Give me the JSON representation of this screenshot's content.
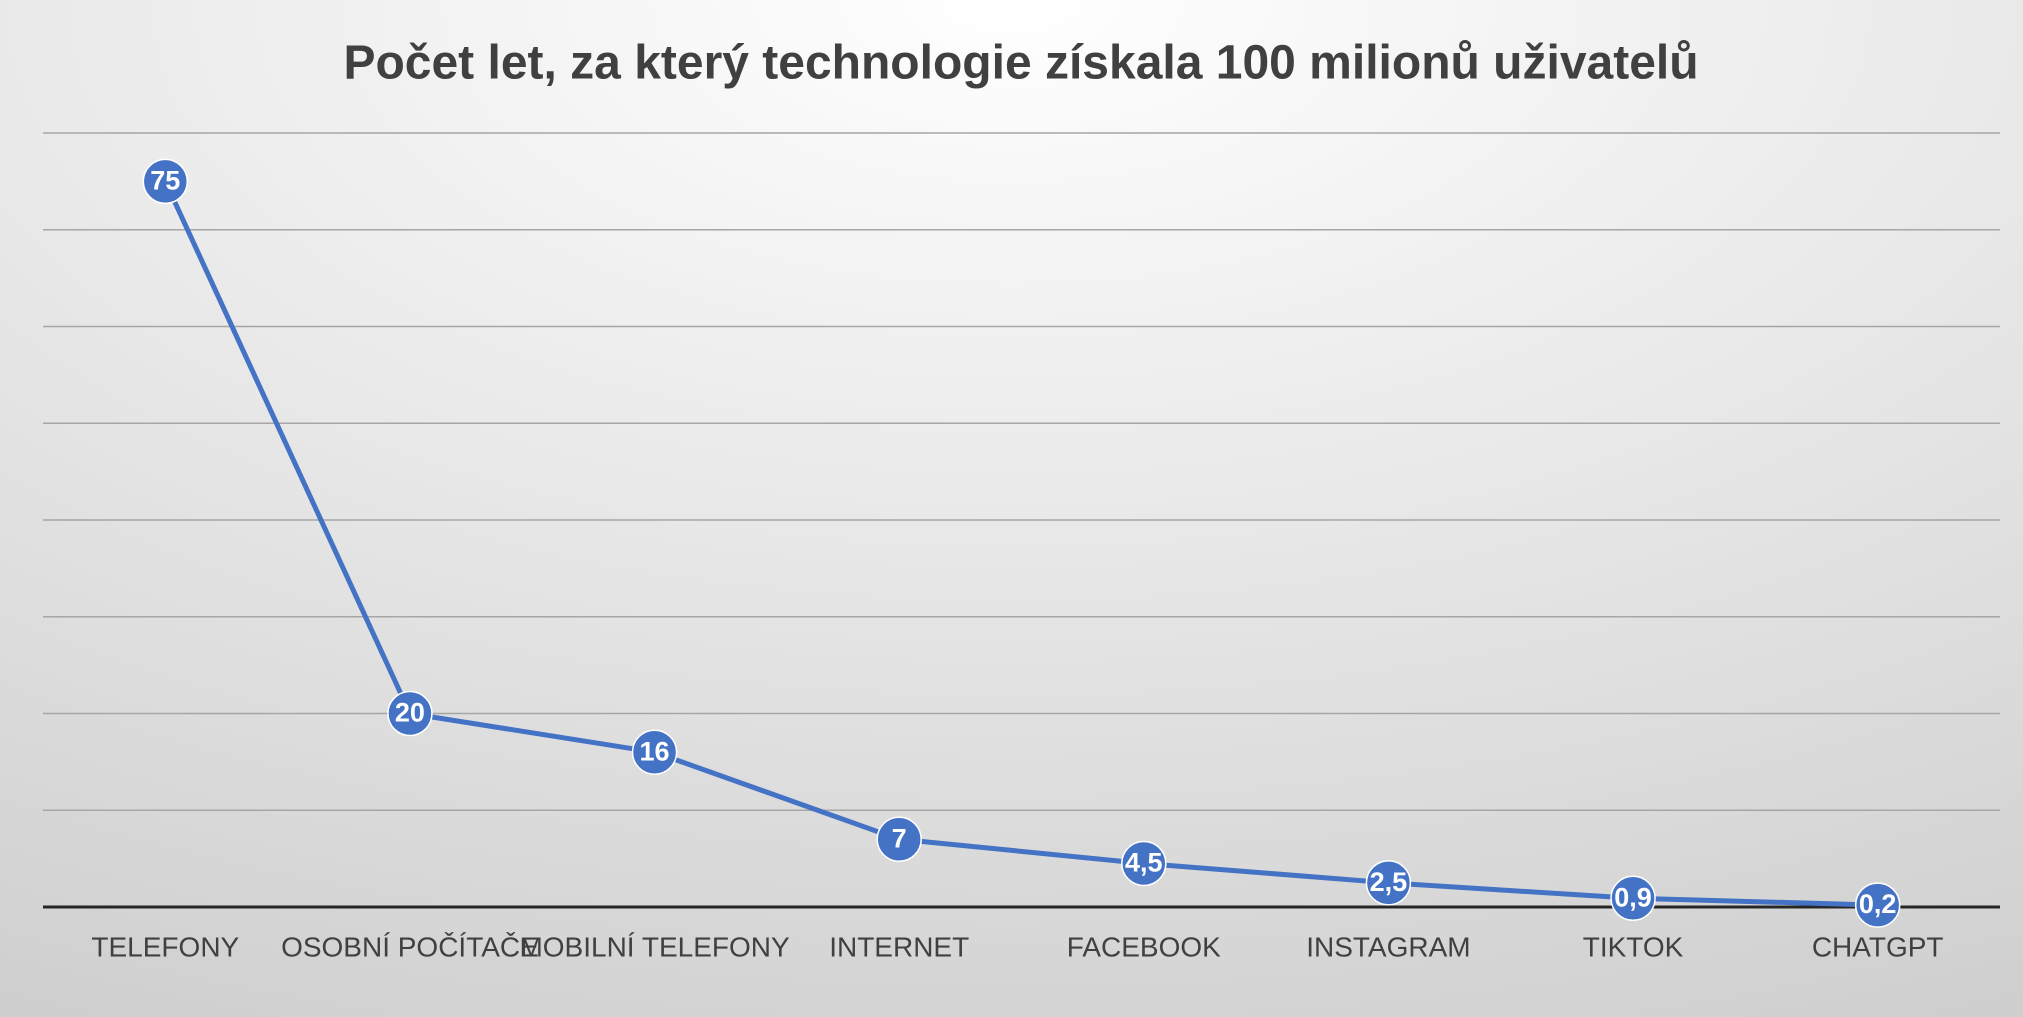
{
  "chart_data": {
    "type": "line",
    "title": "Počet let, za který technologie získala 100 milionů uživatelů",
    "categories": [
      "TELEFONY",
      "OSOBNÍ POČÍTAČE",
      "MOBILNÍ TELEFONY",
      "INTERNET",
      "FACEBOOK",
      "INSTAGRAM",
      "TIKTOK",
      "CHATGPT"
    ],
    "series": [
      {
        "name": "Počet let",
        "color": "#4472c4",
        "values": [
          75,
          20,
          16,
          7,
          4.5,
          2.5,
          0.9,
          0.2
        ],
        "value_labels": [
          "75",
          "20",
          "16",
          "7",
          "4,5",
          "2,5",
          "0,9",
          "0,2"
        ]
      }
    ],
    "ylim": [
      0,
      80
    ],
    "yticks": [
      0,
      10,
      20,
      30,
      40,
      50,
      60,
      70,
      80
    ],
    "grid": true
  }
}
